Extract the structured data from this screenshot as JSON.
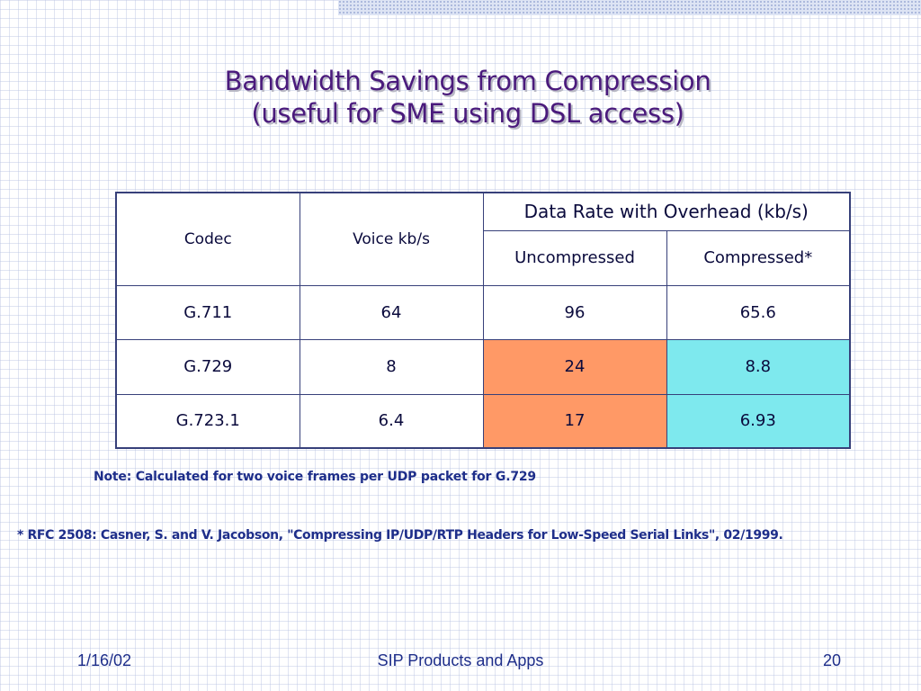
{
  "slide": {
    "title_line1": "Bandwidth Savings from Compression",
    "title_line2": "(useful for SME using DSL access)"
  },
  "table": {
    "header": {
      "codec": "Codec",
      "voice": "Voice kb/s",
      "group": "Data Rate with Overhead (kb/s)",
      "uncompressed": "Uncompressed",
      "compressed": "Compressed*"
    },
    "rows": [
      {
        "codec": "G.711",
        "voice": "64",
        "uncompressed": "96",
        "compressed": "65.6"
      },
      {
        "codec": "G.729",
        "voice": "8",
        "uncompressed": "24",
        "compressed": "8.8"
      },
      {
        "codec": "G.723.1",
        "voice": "6.4",
        "uncompressed": "17",
        "compressed": "6.93"
      }
    ]
  },
  "note": "Note: Calculated for two voice frames per UDP packet for G.729",
  "reference": "* RFC 2508: Casner, S. and V. Jacobson, \"Compressing IP/UDP/RTP Headers for Low-Speed Serial Links\", 02/1999.",
  "footer": {
    "date": "1/16/02",
    "center": "SIP Products and Apps",
    "page": "20"
  },
  "colors": {
    "title": "#4a1a7c",
    "text": "#1e2e8a",
    "highlight_uncompressed": "#ff9966",
    "highlight_compressed": "#7ee9ee"
  }
}
